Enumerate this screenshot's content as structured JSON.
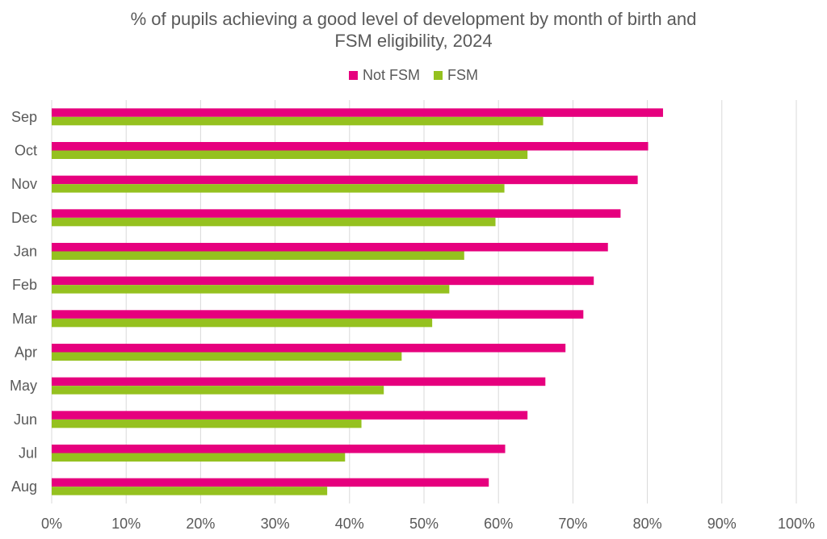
{
  "chart_data": {
    "type": "bar",
    "orientation": "horizontal",
    "title_lines": [
      "% of pupils achieving a good level of development by month of birth and",
      "FSM eligibility, 2024"
    ],
    "categories": [
      "Sep",
      "Oct",
      "Nov",
      "Dec",
      "Jan",
      "Feb",
      "Mar",
      "Apr",
      "May",
      "Jun",
      "Jul",
      "Aug"
    ],
    "series": [
      {
        "name": "Not FSM",
        "color": "#e6007e",
        "values": [
          82.1,
          80.1,
          78.7,
          76.4,
          74.7,
          72.8,
          71.4,
          69.0,
          66.3,
          63.9,
          60.9,
          58.7
        ]
      },
      {
        "name": "FSM",
        "color": "#95c11f",
        "values": [
          66.0,
          63.9,
          60.8,
          59.6,
          55.4,
          53.4,
          51.1,
          47.0,
          44.6,
          41.6,
          39.4,
          37.0
        ]
      }
    ],
    "x_ticks": [
      "0%",
      "10%",
      "20%",
      "30%",
      "40%",
      "50%",
      "60%",
      "70%",
      "80%",
      "90%",
      "100%"
    ],
    "xlim": [
      0,
      100
    ],
    "grid": true,
    "legend_position": "top"
  }
}
